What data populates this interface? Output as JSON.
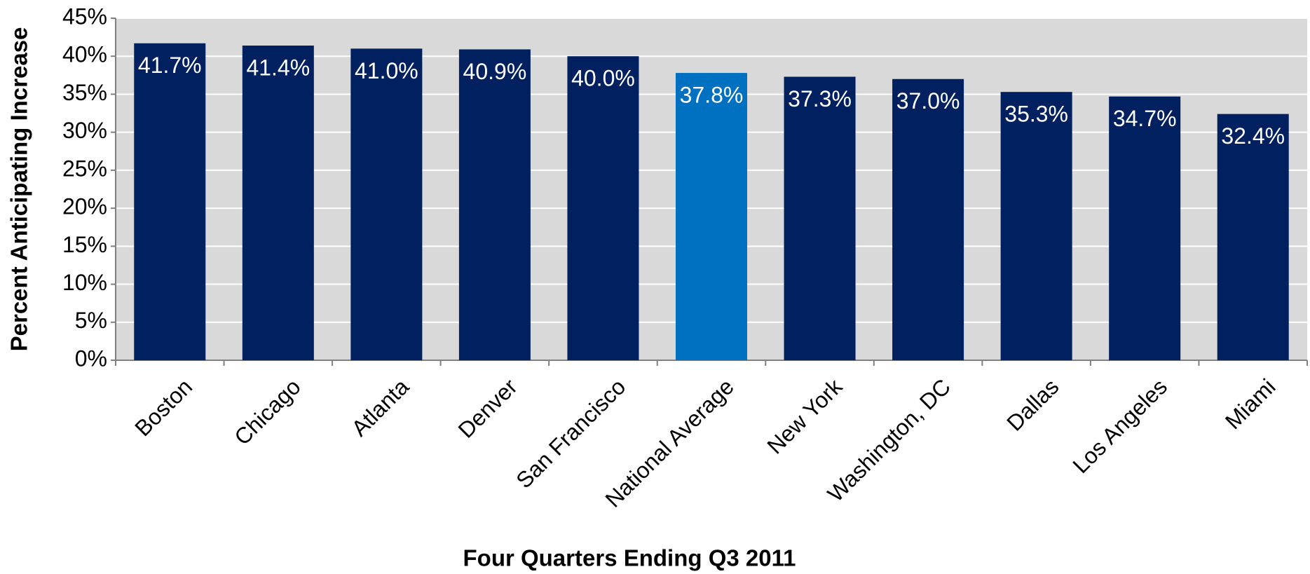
{
  "chart_data": {
    "type": "bar",
    "x_label": "Four Quarters Ending Q3 2011",
    "y_label": "Percent Anticipating Increase",
    "categories": [
      "Boston",
      "Chicago",
      "Atlanta",
      "Denver",
      "San Francisco",
      "National Average",
      "New York",
      "Washington, DC",
      "Dallas",
      "Los Angeles",
      "Miami"
    ],
    "values": [
      41.7,
      41.4,
      41.0,
      40.9,
      40.0,
      37.8,
      37.3,
      37.0,
      35.3,
      34.7,
      32.4
    ],
    "value_labels": [
      "41.7%",
      "41.4%",
      "41.0%",
      "40.9%",
      "40.0%",
      "37.8%",
      "37.3%",
      "37.0%",
      "35.3%",
      "34.7%",
      "32.4%"
    ],
    "colors": [
      "#00205f",
      "#00205f",
      "#00205f",
      "#00205f",
      "#00205f",
      "#0070c0",
      "#00205f",
      "#00205f",
      "#00205f",
      "#00205f",
      "#00205f"
    ],
    "ylim": [
      0,
      45
    ],
    "yticks": [
      {
        "value": 0,
        "label": "0%"
      },
      {
        "value": 5,
        "label": "5%"
      },
      {
        "value": 10,
        "label": "10%"
      },
      {
        "value": 15,
        "label": "15%"
      },
      {
        "value": 20,
        "label": "20%"
      },
      {
        "value": 25,
        "label": "25%"
      },
      {
        "value": 30,
        "label": "30%"
      },
      {
        "value": 35,
        "label": "35%"
      },
      {
        "value": 40,
        "label": "40%"
      },
      {
        "value": 45,
        "label": "45%"
      }
    ],
    "grid": true,
    "plot_background": "#d9d9d9"
  }
}
